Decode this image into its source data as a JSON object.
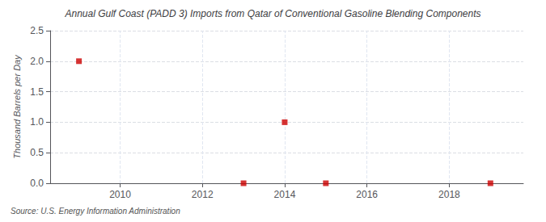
{
  "chart_data": {
    "type": "scatter",
    "title": "Annual Gulf Coast (PADD 3) Imports from Qatar of Conventional Gasoline Blending Components",
    "ylabel": "Thousand Barrels per Day",
    "source": "Source: U.S. Energy Information Administration",
    "x": [
      2009,
      2013,
      2014,
      2015,
      2019
    ],
    "values": [
      2.0,
      0.0,
      1.0,
      0.0,
      0.0
    ],
    "color": "#cc0000",
    "marker": "square",
    "xlim": [
      2008.3,
      2019.8
    ],
    "xticks": [
      2010,
      2012,
      2014,
      2016,
      2018
    ],
    "ylim": [
      0.0,
      2.5
    ],
    "yticks": [
      {
        "value": 0.0,
        "label": "0.0"
      },
      0.5,
      {
        "value": 1.0,
        "label": "1.0"
      },
      1.5,
      {
        "value": 2.0,
        "label": "2.0"
      },
      2.5
    ],
    "grid": true
  }
}
